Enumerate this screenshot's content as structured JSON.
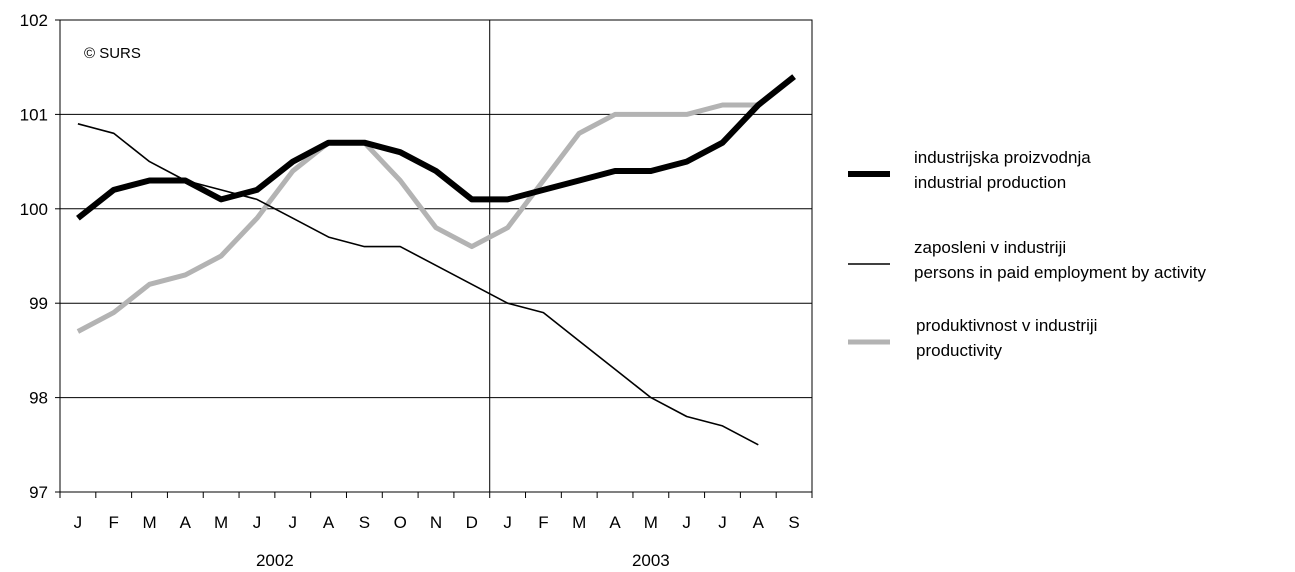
{
  "chart_data": {
    "type": "line",
    "annotation": "© SURS",
    "ylim": [
      97,
      102
    ],
    "yticks": [
      "97",
      "98",
      "99",
      "100",
      "101",
      "102"
    ],
    "grid": true,
    "legend_position": "right",
    "categories": [
      "J",
      "F",
      "M",
      "A",
      "M",
      "J",
      "J",
      "A",
      "S",
      "O",
      "N",
      "D",
      "J",
      "F",
      "M",
      "A",
      "M",
      "J",
      "J",
      "A",
      "S"
    ],
    "years": [
      {
        "label": "2002",
        "start": 0,
        "end": 11
      },
      {
        "label": "2003",
        "start": 12,
        "end": 20
      }
    ],
    "series": [
      {
        "name": "industrijska proizvodnja",
        "name_en": "industrial production",
        "color": "#000000",
        "style": "thick",
        "values": [
          99.9,
          100.2,
          100.3,
          100.3,
          100.1,
          100.2,
          100.5,
          100.7,
          100.7,
          100.6,
          100.4,
          100.1,
          100.1,
          100.2,
          100.3,
          100.4,
          100.4,
          100.5,
          100.7,
          101.1,
          101.4
        ]
      },
      {
        "name": "zaposleni v industriji",
        "name_en": "persons in paid employment by activity",
        "color": "#000000",
        "style": "thin",
        "values": [
          100.9,
          100.8,
          100.5,
          100.3,
          100.2,
          100.1,
          99.9,
          99.7,
          99.6,
          99.6,
          99.4,
          99.2,
          99.0,
          98.9,
          98.6,
          98.3,
          98.0,
          97.8,
          97.7,
          97.5,
          null
        ]
      },
      {
        "name": "produktivnost v industriji",
        "name_en": "productivity",
        "color": "#b3b3b3",
        "style": "thick",
        "values": [
          98.7,
          98.9,
          99.2,
          99.3,
          99.5,
          99.9,
          100.4,
          100.7,
          100.7,
          100.3,
          99.8,
          99.6,
          99.8,
          100.3,
          100.8,
          101.0,
          101.0,
          101.0,
          101.1,
          101.1,
          null
        ]
      }
    ]
  }
}
